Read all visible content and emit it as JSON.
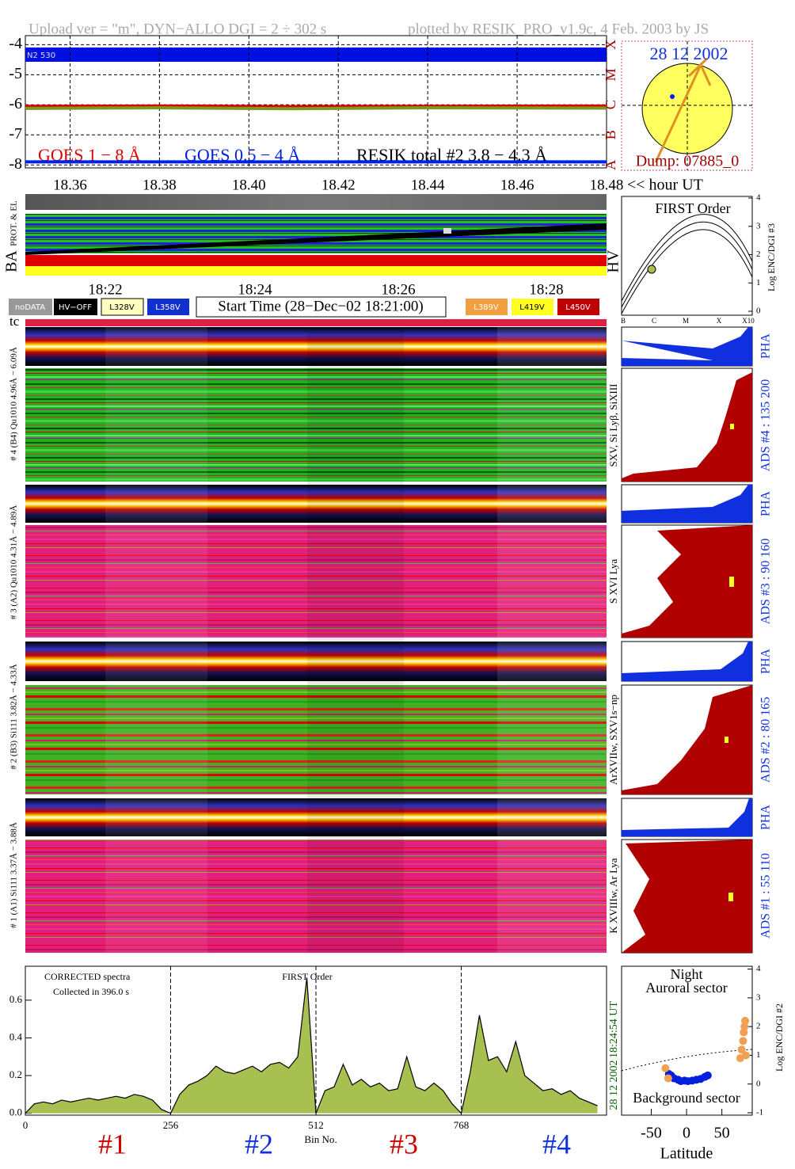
{
  "header": {
    "left": "Upload ver = \"m\", DYN−ALLO DGI =   2 ÷ 302 s",
    "right": "plotted by RESIK_PRO_v1.9c, 4 Feb. 2003 by JS"
  },
  "goes": {
    "type": "line",
    "band_label": "N2 530",
    "xlim": [
      18.35,
      18.48
    ],
    "ylim": [
      -8.1,
      -3.7
    ],
    "xticks": [
      {
        "value": 18.36,
        "label": "18.36"
      },
      {
        "value": 18.38,
        "label": "18.38"
      },
      {
        "value": 18.4,
        "label": "18.40"
      },
      {
        "value": 18.42,
        "label": "18.42"
      },
      {
        "value": 18.44,
        "label": "18.44"
      },
      {
        "value": 18.46,
        "label": "18.46"
      },
      {
        "value": 18.48,
        "label": "18.48"
      }
    ],
    "x_unit": "<< hour UT",
    "yticks": [
      -4,
      -5,
      -6,
      -7,
      -8
    ],
    "classes": [
      "X",
      "M",
      "C",
      "B",
      "A"
    ],
    "grid": true,
    "series": [
      {
        "name": "GOES 1 − 8 Å",
        "color": "#e00000",
        "x": [
          18.35,
          18.38,
          18.41,
          18.44,
          18.48
        ],
        "values": [
          -6.05,
          -6.04,
          -6.06,
          -6.05,
          -6.04
        ]
      },
      {
        "name": "GOES 0.5 − 4 Å",
        "color": "#0020e0",
        "x": [
          18.35,
          18.38,
          18.41,
          18.44,
          18.48
        ],
        "values": [
          -7.9,
          -7.9,
          -7.9,
          -7.9,
          -7.9
        ]
      },
      {
        "name": "RESIK total #2  3.8 − 4.3 Å",
        "color": "#7a9a20",
        "x": [
          18.35,
          18.38,
          18.41,
          18.44,
          18.48
        ],
        "values": [
          -6.12,
          -6.1,
          -6.13,
          -6.1,
          -6.11
        ]
      }
    ]
  },
  "sun": {
    "date": "28 12 2002",
    "dump": "Dump: 07885_0"
  },
  "ba": {
    "label": "BA",
    "sub": "PROT. & EL",
    "hv": "HV"
  },
  "times": [
    "18:22",
    "18:24",
    "18:26",
    "18:28"
  ],
  "hv_legend": [
    "noDATA",
    "HV−OFF",
    "L328V",
    "L358V",
    "L389V",
    "L419V",
    "L450V"
  ],
  "start_time": "Start Time (28−Dec−02 18:21:00)",
  "tc": "tc",
  "first_order": {
    "title": "FIRST Order",
    "yticks": [
      0,
      1,
      2,
      3,
      4
    ],
    "ylim": [
      0,
      4
    ],
    "ylabel": "Log ENC/DGI #3",
    "xlabels": [
      "B",
      "C",
      "M",
      "X",
      "X10"
    ]
  },
  "channels": [
    {
      "label": "# 4 (B4) Qu1010 4.96Å − 6.09Å",
      "lines": "SXV, Si Lyβ, SiXIII",
      "ads": "ADS #4 :   135 200",
      "pha": "PHA"
    },
    {
      "label": "# 3 (A2) Qu1010  4.31Å − 4.89Å",
      "lines": "S XVI Lya",
      "ads": "ADS #3 :   90 160",
      "pha": "PHA"
    },
    {
      "label": "# 2 (B3) Si111  3.82Å − 4.33Å",
      "lines": "ArXVIIw, SXV1s−np",
      "ads": "ADS #2 :   80 165",
      "pha": "PHA"
    },
    {
      "label": "# 1 (A1) Si111  3.37Å − 3.88Å",
      "lines": "K XVIIIw, Ar Lya",
      "ads": "ADS #1 :   55 110",
      "pha": "PHA"
    }
  ],
  "spectrum": {
    "type": "area",
    "title": "CORRECTED spectra",
    "collected": "Collected in   396.0 s",
    "order": "FIRST Order",
    "xlabel": "Bin No.",
    "time": "18:24:54 UT",
    "date": "28 12 2002",
    "channel_names": [
      "#1",
      "#2",
      "#3",
      "#4"
    ],
    "xlim": [
      0,
      1024
    ],
    "ylim": [
      -0.01,
      0.78
    ],
    "xticks": [
      0,
      256,
      512,
      768
    ],
    "yticks": [
      {
        "value": 0,
        "label": "0.0"
      },
      0.2,
      0.4,
      0.6
    ],
    "color": "#a8c050",
    "x": [
      0,
      16,
      32,
      48,
      64,
      80,
      96,
      112,
      128,
      144,
      160,
      176,
      192,
      208,
      224,
      240,
      256,
      272,
      288,
      304,
      320,
      336,
      352,
      368,
      384,
      400,
      416,
      432,
      448,
      464,
      480,
      496,
      512,
      528,
      544,
      560,
      576,
      592,
      608,
      624,
      640,
      656,
      672,
      688,
      704,
      720,
      736,
      752,
      768,
      784,
      800,
      816,
      832,
      848,
      864,
      880,
      896,
      912,
      928,
      944,
      960,
      976,
      992,
      1008
    ],
    "values": [
      0,
      0.05,
      0.06,
      0.05,
      0.07,
      0.06,
      0.07,
      0.08,
      0.07,
      0.08,
      0.09,
      0.08,
      0.1,
      0.09,
      0.07,
      0.02,
      0,
      0.1,
      0.15,
      0.17,
      0.2,
      0.25,
      0.22,
      0.21,
      0.23,
      0.25,
      0.22,
      0.26,
      0.27,
      0.24,
      0.3,
      0.72,
      0,
      0.12,
      0.14,
      0.26,
      0.15,
      0.18,
      0.14,
      0.16,
      0.12,
      0.13,
      0.3,
      0.14,
      0.12,
      0.16,
      0.12,
      0.05,
      0,
      0.22,
      0.52,
      0.28,
      0.3,
      0.22,
      0.38,
      0.2,
      0.16,
      0.12,
      0.13,
      0.1,
      0.12,
      0.08,
      0.06,
      0.04
    ]
  },
  "latitude": {
    "type": "scatter",
    "night": "Night",
    "top": "Auroral sector",
    "bottom": "Background sector",
    "xlabel": "Latitude",
    "ylabel": "Log ENC/DGI #2",
    "xlim": [
      -92,
      93
    ],
    "ylim": [
      -1,
      4.1
    ],
    "xticks": [
      -50,
      0,
      50
    ],
    "yticks": [
      -1,
      0,
      1,
      2,
      3,
      4
    ],
    "series": [
      {
        "color": "#0020e0",
        "x": [
          -25,
          -22,
          -18,
          -12,
          -8,
          -3,
          2,
          8,
          14,
          20,
          26,
          30
        ],
        "values": [
          0.35,
          0.3,
          0.2,
          0.15,
          0.1,
          0.12,
          0.1,
          0.12,
          0.15,
          0.18,
          0.25,
          0.3
        ]
      },
      {
        "color": "#f0a050",
        "x": [
          -30,
          -26,
          76,
          78,
          80,
          81,
          82,
          83,
          84
        ],
        "values": [
          0.55,
          0.2,
          0.9,
          1.2,
          1.5,
          1.8,
          2.0,
          2.2,
          1.0
        ]
      }
    ]
  }
}
